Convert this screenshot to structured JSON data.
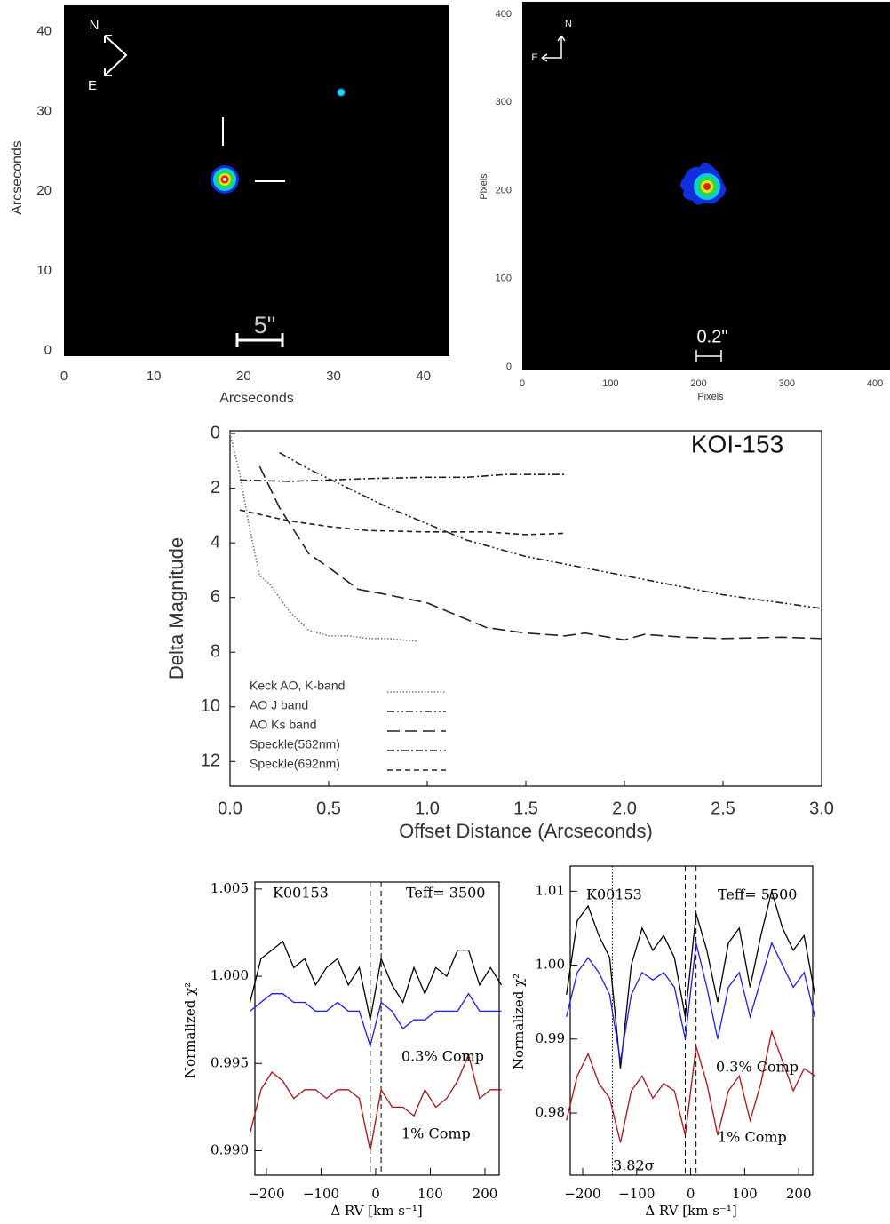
{
  "chart_data": [
    {
      "type": "image",
      "xlabel": "Arcseconds",
      "ylabel": "Arcseconds",
      "xlim": [
        0,
        42.9
      ],
      "ylim": [
        -0.7,
        43.3
      ],
      "xticks": [
        0,
        10,
        20,
        30,
        40
      ],
      "yticks": [
        0,
        10,
        20,
        30,
        40
      ],
      "compass": {
        "north": "N",
        "east": "E"
      },
      "scale_bar": "5\""
    },
    {
      "type": "image",
      "xlabel": "Pixels",
      "ylabel": "Pixels",
      "xlim": [
        0,
        417
      ],
      "ylim": [
        -3,
        414
      ],
      "xticks": [
        0,
        100,
        200,
        300,
        400
      ],
      "yticks": [
        0,
        100,
        200,
        300,
        400
      ],
      "compass": {
        "north": "N",
        "east": "E"
      },
      "scale_bar": "0.2\""
    },
    {
      "type": "line",
      "title": "KOI-153",
      "xlabel": "Offset Distance (Arcseconds)",
      "ylabel": "Delta Magnitude",
      "xlim": [
        0,
        3
      ],
      "ylim": [
        12.9,
        -0.1
      ],
      "xticks": [
        {
          "value": 0,
          "label": "0.0"
        },
        0.5,
        {
          "value": 1,
          "label": "1.0"
        },
        1.5,
        {
          "value": 2,
          "label": "2.0"
        },
        2.5,
        {
          "value": 3,
          "label": "3.0"
        }
      ],
      "yticks": [
        0,
        2,
        4,
        6,
        8,
        10,
        12
      ],
      "color": "#222222",
      "series": [
        {
          "name": "Keck AO, K-band",
          "style": "dotted",
          "color": "#777777",
          "x": [
            0.0,
            0.05,
            0.1,
            0.15,
            0.2,
            0.3,
            0.4,
            0.5,
            0.6,
            0.7,
            0.8,
            0.95
          ],
          "values": [
            0,
            1.5,
            3.5,
            5.2,
            5.5,
            6.5,
            7.2,
            7.4,
            7.4,
            7.5,
            7.5,
            7.6
          ]
        },
        {
          "name": "AO J band",
          "style": "dash-dot-dot",
          "color": "#222222",
          "x": [
            0.25,
            0.4,
            0.6,
            0.8,
            1.0,
            1.2,
            1.5,
            2.0,
            2.5,
            3.0
          ],
          "values": [
            0.7,
            1.3,
            2.0,
            2.7,
            3.3,
            3.9,
            4.5,
            5.2,
            5.9,
            6.4
          ]
        },
        {
          "name": "AO Ks band",
          "style": "long-dash",
          "color": "#222222",
          "x": [
            0.15,
            0.25,
            0.4,
            0.5,
            0.65,
            0.8,
            1.0,
            1.2,
            1.3,
            1.5,
            1.7,
            1.8,
            2.0,
            2.1,
            2.3,
            2.5,
            2.8,
            3.0
          ],
          "values": [
            1.2,
            2.7,
            4.4,
            4.9,
            5.7,
            5.9,
            6.2,
            6.8,
            7.1,
            7.3,
            7.4,
            7.3,
            7.55,
            7.35,
            7.45,
            7.5,
            7.45,
            7.5
          ]
        },
        {
          "name": "Speckle(562nm)",
          "style": "dash-dot",
          "color": "#222222",
          "x": [
            0.05,
            0.3,
            0.5,
            0.7,
            1.0,
            1.2,
            1.4,
            1.7
          ],
          "values": [
            1.7,
            1.75,
            1.7,
            1.65,
            1.6,
            1.6,
            1.5,
            1.5
          ]
        },
        {
          "name": "Speckle(692nm)",
          "style": "short-dash",
          "color": "#222222",
          "x": [
            0.05,
            0.3,
            0.5,
            0.7,
            1.0,
            1.3,
            1.5,
            1.7
          ],
          "values": [
            2.8,
            3.2,
            3.4,
            3.55,
            3.6,
            3.6,
            3.7,
            3.65
          ]
        }
      ]
    },
    {
      "type": "line",
      "xlabel": "Δ RV [km s⁻¹]",
      "ylabel": "Normalized χ²",
      "xlim": [
        -221,
        226
      ],
      "ylim": [
        0.9886,
        1.0054
      ],
      "xticks": [
        {
          "value": -200,
          "label": "−200"
        },
        {
          "value": -100,
          "label": "−100"
        },
        0,
        100,
        200
      ],
      "yticks": [
        {
          "value": 0.99,
          "label": "0.990"
        },
        0.995,
        {
          "value": 1,
          "label": "1.000"
        },
        1.005
      ],
      "annotations": [
        "K00153",
        "Teff= 3500",
        "0.3% Comp",
        "1% Comp"
      ],
      "vlines": [
        {
          "x": -10,
          "style": "dashed"
        },
        {
          "x": 10,
          "style": "dashed"
        }
      ],
      "x": [
        -230,
        -210,
        -190,
        -170,
        -150,
        -130,
        -110,
        -90,
        -70,
        -50,
        -30,
        -10,
        10,
        30,
        50,
        70,
        90,
        110,
        130,
        150,
        170,
        190,
        210,
        230
      ],
      "series": [
        {
          "color": "#000000",
          "values": [
            0.9985,
            1.001,
            1.0015,
            1.002,
            1.0005,
            1.001,
            0.9995,
            1.0005,
            1.001,
            0.9995,
            1.0005,
            0.9975,
            1.001,
            0.9995,
            0.9985,
            1.0005,
            0.999,
            1.0005,
            1.0,
            1.0015,
            1.0015,
            0.9995,
            1.0005,
            0.9995
          ]
        },
        {
          "color": "#1a1aff",
          "values": [
            0.998,
            0.9985,
            0.999,
            0.999,
            0.9985,
            0.9985,
            0.998,
            0.998,
            0.9985,
            0.998,
            0.998,
            0.996,
            0.9985,
            0.998,
            0.997,
            0.9975,
            0.9975,
            0.998,
            0.998,
            0.998,
            0.999,
            0.998,
            0.998,
            0.998
          ]
        },
        {
          "color": "#b01010",
          "values": [
            0.991,
            0.9935,
            0.9945,
            0.994,
            0.993,
            0.9935,
            0.9935,
            0.993,
            0.9935,
            0.9935,
            0.993,
            0.99,
            0.9935,
            0.9925,
            0.9925,
            0.992,
            0.9935,
            0.9925,
            0.993,
            0.994,
            0.9955,
            0.993,
            0.9935,
            0.9935
          ]
        }
      ]
    },
    {
      "type": "line",
      "xlabel": "Δ RV [km s⁻¹]",
      "ylabel": "Normalized χ²",
      "xlim": [
        -223,
        226
      ],
      "ylim": [
        0.9716,
        1.0134
      ],
      "xticks": [
        {
          "value": -200,
          "label": "−200"
        },
        {
          "value": -100,
          "label": "−100"
        },
        0,
        100,
        200
      ],
      "yticks": [
        0.98,
        0.99,
        {
          "value": 1,
          "label": "1.00"
        },
        1.01
      ],
      "annotations": [
        "K00153",
        "Teff= 5500",
        "0.3% Comp",
        "1% Comp",
        "3.82σ"
      ],
      "vlines": [
        {
          "x": -10,
          "style": "dashed"
        },
        {
          "x": 10,
          "style": "dashed"
        },
        {
          "x": -145,
          "style": "dotted"
        }
      ],
      "x": [
        -230,
        -210,
        -190,
        -170,
        -150,
        -130,
        -110,
        -90,
        -70,
        -50,
        -30,
        -10,
        10,
        30,
        50,
        70,
        90,
        110,
        130,
        150,
        170,
        190,
        210,
        230
      ],
      "series": [
        {
          "color": "#000000",
          "values": [
            0.996,
            1.006,
            1.008,
            1.004,
            1.001,
            0.986,
            1.0,
            1.005,
            1.002,
            1.004,
            1.001,
            0.993,
            1.007,
            1.002,
            0.995,
            1.003,
            1.005,
            0.997,
            1.004,
            1.01,
            1.005,
            1.002,
            1.004,
            0.996
          ]
        },
        {
          "color": "#1a1aff",
          "values": [
            0.993,
            0.999,
            1.001,
            0.999,
            0.996,
            0.987,
            0.996,
            0.999,
            0.998,
            0.999,
            0.997,
            0.99,
            1.003,
            0.997,
            0.99,
            0.997,
            0.999,
            0.993,
            0.998,
            1.003,
            1.0,
            0.997,
            0.999,
            0.993
          ]
        },
        {
          "color": "#b01010",
          "values": [
            0.979,
            0.985,
            0.988,
            0.984,
            0.982,
            0.976,
            0.983,
            0.985,
            0.982,
            0.984,
            0.983,
            0.977,
            0.989,
            0.984,
            0.977,
            0.983,
            0.985,
            0.979,
            0.984,
            0.991,
            0.987,
            0.983,
            0.986,
            0.985
          ]
        }
      ]
    }
  ]
}
